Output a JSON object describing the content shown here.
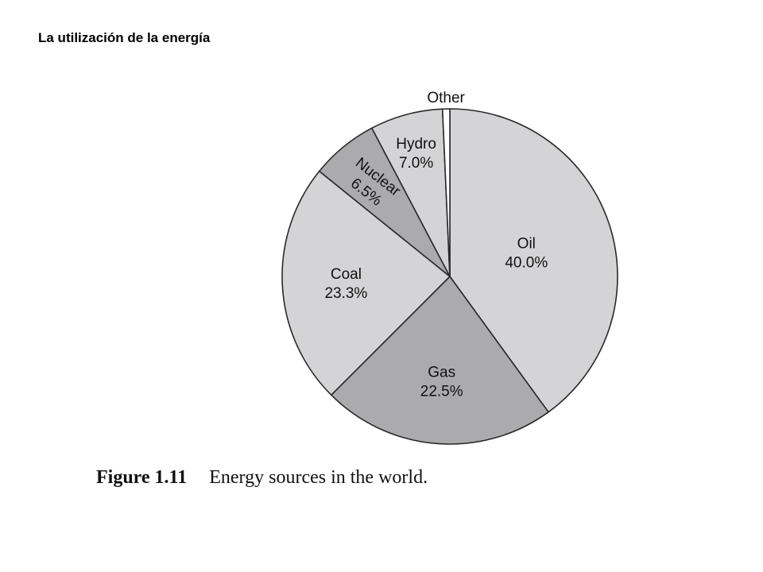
{
  "slide": {
    "title": "La utilización de la energía"
  },
  "caption": {
    "number": "Figure 1.11",
    "text": "Energy sources in the world."
  },
  "chart_data": {
    "type": "pie",
    "title": "",
    "start": "12 o'clock",
    "direction": "clockwise",
    "slices": [
      {
        "name": "Oil",
        "value_label": "40.0%",
        "value": 40.0,
        "color": "#d4d4d6"
      },
      {
        "name": "Gas",
        "value_label": "22.5%",
        "value": 22.5,
        "color": "#ababae"
      },
      {
        "name": "Coal",
        "value_label": "23.3%",
        "value": 23.3,
        "color": "#d4d4d6"
      },
      {
        "name": "Nuclear",
        "value_label": "6.5%",
        "value": 6.5,
        "color": "#ababae"
      },
      {
        "name": "Hydro",
        "value_label": "7.0%",
        "value": 7.0,
        "color": "#d4d4d6"
      },
      {
        "name": "Other",
        "value_label": "",
        "value": 0.7,
        "color": "#ffffff"
      }
    ]
  }
}
